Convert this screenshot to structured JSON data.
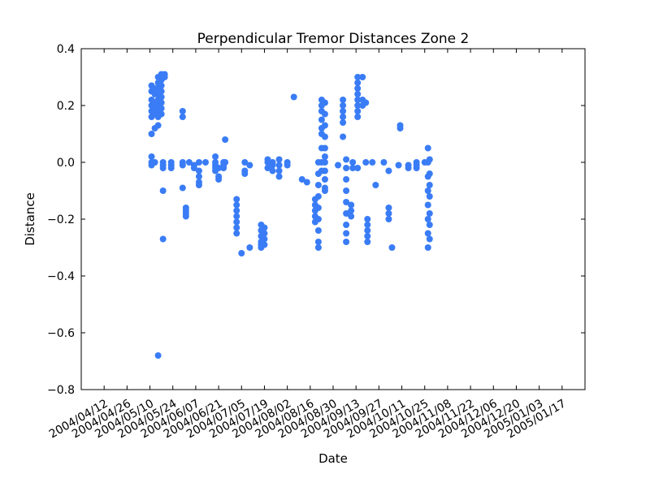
{
  "chart_data": {
    "type": "scatter",
    "title": "Perpendicular Tremor Distances Zone 2",
    "xlabel": "Date",
    "ylabel": "Distance",
    "x_type": "date",
    "xlim": [
      "2004-03-29",
      "2005-01-31"
    ],
    "ylim": [
      -0.8,
      0.4
    ],
    "x_tick_labels": [
      "2004/04/12",
      "2004/04/26",
      "2004/05/10",
      "2004/05/24",
      "2004/06/07",
      "2004/06/21",
      "2004/07/05",
      "2004/07/19",
      "2004/08/02",
      "2004/08/16",
      "2004/08/30",
      "2004/09/13",
      "2004/09/27",
      "2004/10/11",
      "2004/10/25",
      "2004/11/08",
      "2004/11/22",
      "2004/12/06",
      "2004/12/20",
      "2005/01/03",
      "2005/01/17"
    ],
    "y_tick_labels": [
      "0.4",
      "0.2",
      "0.0",
      "−0.2",
      "−0.4",
      "−0.6",
      "−0.8"
    ],
    "y_ticks": [
      0.4,
      0.2,
      0.0,
      -0.2,
      -0.4,
      -0.6,
      -0.8
    ],
    "grid": false,
    "marker_color": "#3a7cf5",
    "clusters": [
      {
        "date": "2004-05-11",
        "values": [
          0.27,
          0.25,
          0.22,
          0.2,
          0.18,
          0.16,
          0.1,
          0.02,
          0.0,
          -0.01
        ]
      },
      {
        "date": "2004-05-13",
        "values": [
          0.26,
          0.24,
          0.21,
          0.19,
          0.17,
          0.12,
          0.0
        ]
      },
      {
        "date": "2004-05-15",
        "values": [
          0.3,
          0.28,
          0.26,
          0.24,
          0.22,
          0.2,
          0.18,
          0.16,
          0.13,
          -0.68
        ]
      },
      {
        "date": "2004-05-17",
        "values": [
          0.31,
          0.29,
          0.27,
          0.25,
          0.23,
          0.21,
          0.19,
          0.17
        ]
      },
      {
        "date": "2004-05-18",
        "values": [
          0.0,
          -0.01,
          -0.02,
          -0.1,
          -0.27
        ]
      },
      {
        "date": "2004-05-19",
        "values": [
          0.31,
          0.3
        ]
      },
      {
        "date": "2004-05-23",
        "values": [
          0.0,
          -0.01,
          -0.02
        ]
      },
      {
        "date": "2004-05-30",
        "values": [
          0.18,
          0.16,
          0.0,
          -0.01,
          -0.09
        ]
      },
      {
        "date": "2004-06-01",
        "values": [
          -0.16,
          -0.17,
          -0.18,
          -0.19
        ]
      },
      {
        "date": "2004-06-03",
        "values": [
          0.0
        ]
      },
      {
        "date": "2004-06-06",
        "values": [
          -0.01,
          -0.02
        ]
      },
      {
        "date": "2004-06-09",
        "values": [
          0.0,
          -0.03,
          -0.05,
          -0.07,
          -0.08
        ]
      },
      {
        "date": "2004-06-13",
        "values": [
          0.0
        ]
      },
      {
        "date": "2004-06-19",
        "values": [
          0.02,
          0.0,
          -0.01,
          -0.02,
          -0.03
        ]
      },
      {
        "date": "2004-06-21",
        "values": [
          -0.02,
          -0.05,
          -0.06
        ]
      },
      {
        "date": "2004-06-24",
        "values": [
          0.0,
          -0.01,
          -0.02
        ]
      },
      {
        "date": "2004-06-25",
        "values": [
          0.08,
          0.0
        ]
      },
      {
        "date": "2004-07-02",
        "values": [
          -0.13,
          -0.15,
          -0.17,
          -0.19,
          -0.21,
          -0.23,
          -0.25
        ]
      },
      {
        "date": "2004-07-05",
        "values": [
          -0.32
        ]
      },
      {
        "date": "2004-07-07",
        "values": [
          0.0,
          -0.03,
          -0.04
        ]
      },
      {
        "date": "2004-07-10",
        "values": [
          -0.01,
          -0.3
        ]
      },
      {
        "date": "2004-07-17",
        "values": [
          -0.22,
          -0.24,
          -0.26,
          -0.28,
          -0.29,
          -0.3
        ]
      },
      {
        "date": "2004-07-19",
        "values": [
          -0.23,
          -0.25,
          -0.27,
          -0.29
        ]
      },
      {
        "date": "2004-07-21",
        "values": [
          0.01,
          0.0,
          -0.02
        ]
      },
      {
        "date": "2004-07-24",
        "values": [
          0.0,
          -0.01,
          -0.03
        ]
      },
      {
        "date": "2004-07-28",
        "values": [
          0.01,
          -0.01,
          -0.03,
          -0.05
        ]
      },
      {
        "date": "2004-08-02",
        "values": [
          0.0,
          -0.01
        ]
      },
      {
        "date": "2004-08-06",
        "values": [
          0.23
        ]
      },
      {
        "date": "2004-08-11",
        "values": [
          -0.06
        ]
      },
      {
        "date": "2004-08-14",
        "values": [
          -0.07
        ]
      },
      {
        "date": "2004-08-19",
        "values": [
          -0.13,
          -0.15,
          -0.17,
          -0.19,
          -0.21
        ]
      },
      {
        "date": "2004-08-21",
        "values": [
          0.0,
          -0.04,
          -0.08,
          -0.12,
          -0.16,
          -0.2,
          -0.24,
          -0.28,
          -0.3
        ]
      },
      {
        "date": "2004-08-23",
        "values": [
          0.22,
          0.2,
          0.18,
          0.15,
          0.12,
          0.1,
          0.05,
          0.0,
          -0.03
        ]
      },
      {
        "date": "2004-08-25",
        "values": [
          0.21,
          0.17,
          0.13,
          0.09,
          0.05,
          0.02,
          0.0,
          -0.03,
          -0.06,
          -0.09,
          -0.1
        ]
      },
      {
        "date": "2004-09-02",
        "values": [
          -0.01
        ]
      },
      {
        "date": "2004-09-05",
        "values": [
          0.22,
          0.2,
          0.18,
          0.16,
          0.14,
          0.09
        ]
      },
      {
        "date": "2004-09-07",
        "values": [
          0.01,
          -0.02,
          -0.06,
          -0.1,
          -0.14,
          -0.18,
          -0.22,
          -0.25,
          -0.28
        ]
      },
      {
        "date": "2004-09-10",
        "values": [
          -0.15,
          -0.17,
          -0.19
        ]
      },
      {
        "date": "2004-09-11",
        "values": [
          0.0,
          -0.02
        ]
      },
      {
        "date": "2004-09-14",
        "values": [
          0.3,
          0.28,
          0.26,
          0.24,
          0.22,
          0.2,
          0.18,
          0.16,
          -0.02
        ]
      },
      {
        "date": "2004-09-17",
        "values": [
          0.3,
          0.22,
          0.2
        ]
      },
      {
        "date": "2004-09-19",
        "values": [
          0.21,
          0.0
        ]
      },
      {
        "date": "2004-09-20",
        "values": [
          -0.2,
          -0.22,
          -0.24,
          -0.26,
          -0.28
        ]
      },
      {
        "date": "2004-09-23",
        "values": [
          0.0
        ]
      },
      {
        "date": "2004-09-25",
        "values": [
          -0.08
        ]
      },
      {
        "date": "2004-09-30",
        "values": [
          0.0
        ]
      },
      {
        "date": "2004-10-03",
        "values": [
          -0.16,
          -0.18,
          -0.2,
          -0.03
        ]
      },
      {
        "date": "2004-10-05",
        "values": [
          -0.3
        ]
      },
      {
        "date": "2004-10-09",
        "values": [
          -0.01
        ]
      },
      {
        "date": "2004-10-10",
        "values": [
          0.13,
          0.12
        ]
      },
      {
        "date": "2004-10-15",
        "values": [
          -0.01,
          -0.02
        ]
      },
      {
        "date": "2004-10-20",
        "values": [
          0.0,
          -0.01,
          -0.02
        ]
      },
      {
        "date": "2004-10-25",
        "values": [
          0.0
        ]
      },
      {
        "date": "2004-10-27",
        "values": [
          0.05,
          0.0,
          -0.05,
          -0.1,
          -0.15,
          -0.2,
          -0.25,
          -0.3
        ]
      },
      {
        "date": "2004-10-28",
        "values": [
          0.01,
          -0.04,
          -0.08,
          -0.12,
          -0.18,
          -0.22,
          -0.27
        ]
      }
    ]
  }
}
